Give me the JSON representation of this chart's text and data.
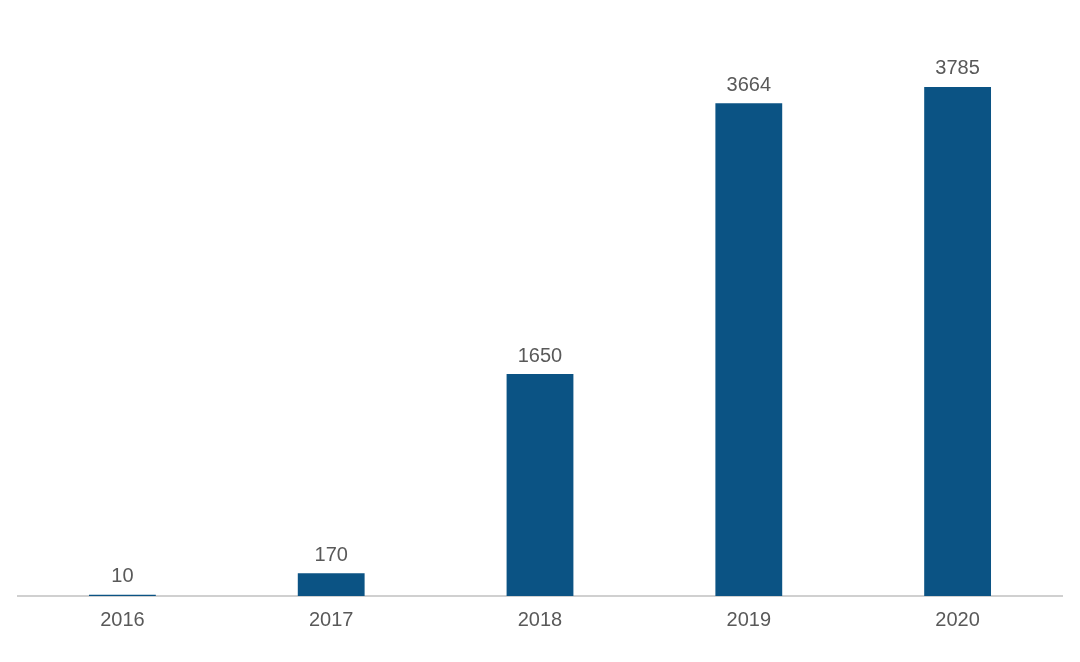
{
  "chart_data": {
    "type": "bar",
    "categories": [
      "2016",
      "2017",
      "2018",
      "2019",
      "2020"
    ],
    "values": [
      10,
      170,
      1650,
      3664,
      3785
    ],
    "color": "#0b5384",
    "data_labels": true,
    "tick_labels": "x",
    "grid": false,
    "legend": false
  }
}
